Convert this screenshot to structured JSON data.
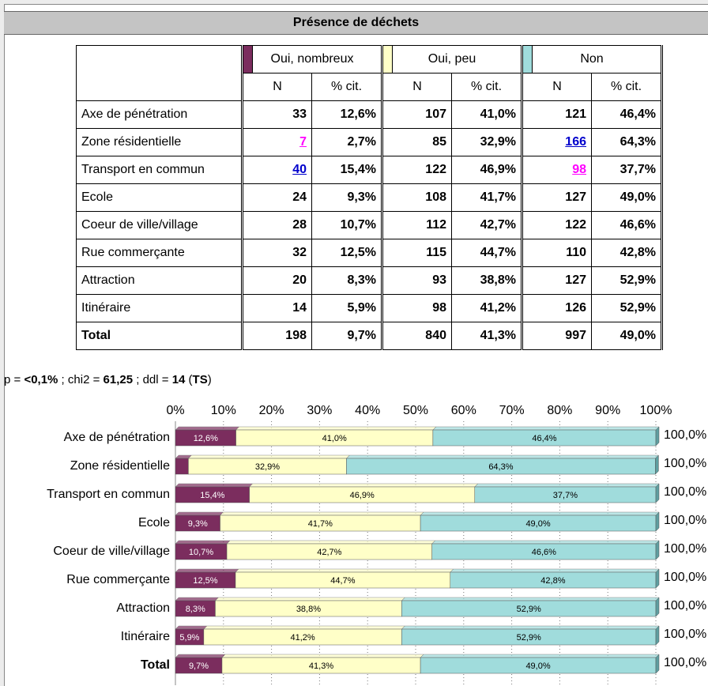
{
  "title": "Présence de déchets",
  "table": {
    "groups": [
      "Oui, nombreux",
      "Oui, peu",
      "Non"
    ],
    "group_colors": [
      "#7b2d5e",
      "#ffffc8",
      "#a0dcdc"
    ],
    "subheaders": [
      "N",
      "% cit.",
      "N",
      "% cit.",
      "N",
      "% cit."
    ],
    "rows": [
      [
        "Axe de pénétration",
        "33",
        "12,6%",
        "107",
        "41,0%",
        "121",
        "46,4%"
      ],
      [
        "Zone résidentielle",
        "7",
        "2,7%",
        "85",
        "32,9%",
        "166",
        "64,3%"
      ],
      [
        "Transport en commun",
        "40",
        "15,4%",
        "122",
        "46,9%",
        "98",
        "37,7%"
      ],
      [
        "Ecole",
        "24",
        "9,3%",
        "108",
        "41,7%",
        "127",
        "49,0%"
      ],
      [
        "Coeur de ville/village",
        "28",
        "10,7%",
        "112",
        "42,7%",
        "122",
        "46,6%"
      ],
      [
        "Rue commerçante",
        "32",
        "12,5%",
        "115",
        "44,7%",
        "110",
        "42,8%"
      ],
      [
        "Attraction",
        "20",
        "8,3%",
        "93",
        "38,8%",
        "127",
        "52,9%"
      ],
      [
        "Itinéraire",
        "14",
        "5,9%",
        "98",
        "41,2%",
        "126",
        "52,9%"
      ],
      [
        "Total",
        "198",
        "9,7%",
        "840",
        "41,3%",
        "997",
        "49,0%"
      ]
    ]
  },
  "stats": [
    "p = ",
    "<0,1%",
    " ; chi2 = ",
    "61,25",
    " ; ddl = ",
    "14",
    " (",
    "TS",
    ")"
  ],
  "chart_data": {
    "type": "bar",
    "stacked": true,
    "orientation": "horizontal",
    "categories": [
      "Axe de pénétration",
      "Zone résidentielle",
      "Transport en commun",
      "Ecole",
      "Coeur de ville/village",
      "Rue commerçante",
      "Attraction",
      "Itinéraire",
      "Total"
    ],
    "series": [
      {
        "name": "Oui, nombreux",
        "color": "#7b2d5e",
        "values": [
          12.6,
          2.7,
          15.4,
          9.3,
          10.7,
          12.5,
          8.3,
          5.9,
          9.7
        ],
        "value_labels": [
          "12,6%",
          null,
          "15,4%",
          "9,3%",
          "10,7%",
          "12,5%",
          "8,3%",
          "5,9%",
          "9,7%"
        ]
      },
      {
        "name": "Oui, peu",
        "color": "#ffffc8",
        "values": [
          41.0,
          32.9,
          46.9,
          41.7,
          42.7,
          44.7,
          38.8,
          41.2,
          41.3
        ],
        "value_labels": [
          "41,0%",
          "32,9%",
          "46,9%",
          "41,7%",
          "42,7%",
          "44,7%",
          "38,8%",
          "41,2%",
          "41,3%"
        ]
      },
      {
        "name": "Non",
        "color": "#a0dcdc",
        "values": [
          46.4,
          64.3,
          37.7,
          49.0,
          46.6,
          42.8,
          52.9,
          52.9,
          49.0
        ],
        "value_labels": [
          "46,4%",
          "64,3%",
          "37,7%",
          "49,0%",
          "46,6%",
          "42,8%",
          "52,9%",
          "52,9%",
          "49,0%"
        ]
      }
    ],
    "total_labels": [
      "100,0%",
      "100,0%",
      "100,0%",
      "100,0%",
      "100,0%",
      "100,0%",
      "100,0%",
      "100,0%",
      "100,0%"
    ],
    "xlim": [
      0,
      100
    ],
    "xticks": [
      {
        "value": 0,
        "label": "0%"
      },
      {
        "value": 10,
        "label": "10%"
      },
      {
        "value": 20,
        "label": "20%"
      },
      {
        "value": 30,
        "label": "30%"
      },
      {
        "value": 40,
        "label": "40%"
      },
      {
        "value": 50,
        "label": "50%"
      },
      {
        "value": 60,
        "label": "60%"
      },
      {
        "value": 70,
        "label": "70%"
      },
      {
        "value": 80,
        "label": "80%"
      },
      {
        "value": 90,
        "label": "90%"
      },
      {
        "value": 100,
        "label": "100%"
      }
    ],
    "grid": true
  }
}
